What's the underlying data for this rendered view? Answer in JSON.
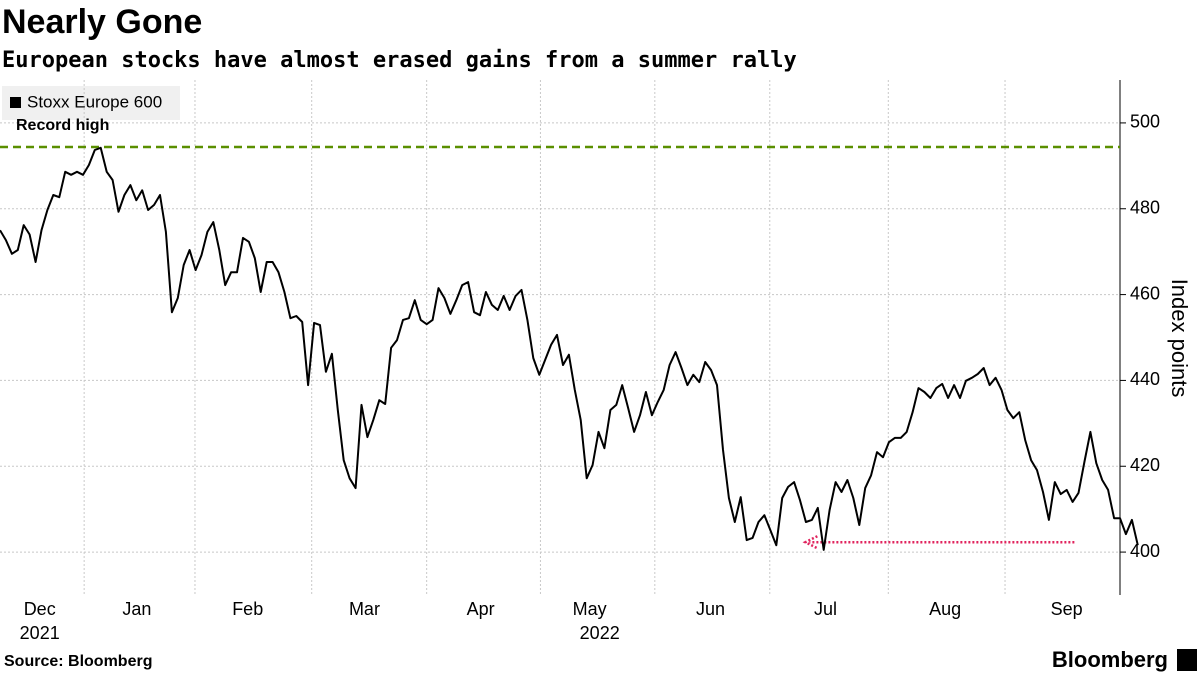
{
  "chart_data": {
    "type": "line",
    "title": "Nearly Gone",
    "subtitle": "European stocks have almost erased gains from a summer rally",
    "y_axis_label": "Index points",
    "source": "Source: Bloomberg",
    "brand": "Bloomberg",
    "series": [
      {
        "name": "Stoxx Europe 600",
        "color": "#000000",
        "values": [
          475,
          472.7,
          469.5,
          470.4,
          476.2,
          474,
          467.6,
          475,
          479.7,
          483.2,
          482.7,
          488.6,
          487.9,
          488.6,
          487.9,
          490.2,
          493.7,
          494.2,
          488.6,
          486.7,
          479.3,
          483.2,
          485.5,
          482,
          484.3,
          479.7,
          480.9,
          483.2,
          474.6,
          455.9,
          459.2,
          466.9,
          470.4,
          465.7,
          469.2,
          474.6,
          476.9,
          470.4,
          462.2,
          465.2,
          465.2,
          473.2,
          472.3,
          468.5,
          460.6,
          467.6,
          467.6,
          465.2,
          460.6,
          454.5,
          455,
          453.6,
          438.9,
          453.4,
          452.9,
          442,
          446.2,
          433.1,
          421.4,
          417.2,
          414.9,
          434.3,
          426.8,
          430.8,
          435.4,
          434.5,
          447.6,
          449.4,
          454.1,
          454.5,
          458.7,
          454.1,
          453.1,
          454.1,
          461.5,
          459.2,
          455.5,
          458.7,
          462.2,
          462.9,
          455.9,
          455.2,
          460.6,
          457.6,
          456.4,
          459.7,
          456.4,
          459.7,
          461.1,
          454.1,
          445.2,
          441.3,
          444.8,
          448.3,
          450.6,
          443.6,
          446,
          437.8,
          430.8,
          417.2,
          420.3,
          428,
          424.2,
          433.1,
          434.3,
          438.9,
          433.6,
          428,
          431.9,
          437.3,
          431.9,
          435,
          437.8,
          443.6,
          446.6,
          442.9,
          438.9,
          441.3,
          439.6,
          444.3,
          442.4,
          438.9,
          423.8,
          412.6,
          407,
          412.8,
          402.8,
          403.3,
          407,
          408.6,
          405.1,
          401.6,
          412.6,
          415.2,
          416.3,
          412.1,
          407,
          407.5,
          410.3,
          400.5,
          409.8,
          416.3,
          414,
          416.8,
          412.6,
          406.3,
          414.9,
          417.9,
          423.3,
          422.1,
          425.6,
          426.6,
          426.6,
          428,
          432.6,
          438.2,
          437.3,
          435.9,
          438.2,
          439.2,
          435.9,
          438.9,
          435.9,
          439.9,
          440.6,
          441.5,
          442.9,
          438.9,
          440.6,
          437.8,
          433.1,
          431.2,
          432.6,
          426.1,
          421.4,
          419.1,
          414,
          407.5,
          416.3,
          413.5,
          414.5,
          411.7,
          413.8,
          421,
          428,
          420.7,
          416.8,
          414.5,
          407.9,
          407.9,
          404.2,
          407.5,
          401.6
        ]
      }
    ],
    "xlim": [
      0,
      189
    ],
    "xticks": [
      {
        "value": 6.7,
        "label": "Dec"
      },
      {
        "value": 23.1,
        "label": "Jan"
      },
      {
        "value": 41.8,
        "label": "Feb"
      },
      {
        "value": 61.5,
        "label": "Mar"
      },
      {
        "value": 81.1,
        "label": "Apr"
      },
      {
        "value": 99.5,
        "label": "May"
      },
      {
        "value": 119.9,
        "label": "Jun"
      },
      {
        "value": 139.3,
        "label": "Jul"
      },
      {
        "value": 159.5,
        "label": "Aug"
      },
      {
        "value": 180,
        "label": "Sep"
      }
    ],
    "year_labels": [
      {
        "value": 6.7,
        "label": "2021"
      },
      {
        "value": 101.2,
        "label": "2022"
      }
    ],
    "xgrid": [
      14.2,
      32.9,
      52.6,
      72,
      91.2,
      110.5,
      129.9,
      149.9,
      169.6
    ],
    "ylim": [
      390,
      510
    ],
    "yticks": [
      400,
      420,
      440,
      460,
      480,
      500
    ],
    "grid": true,
    "reference_line": {
      "label": "Record high",
      "value": 494.4,
      "color": "#5a8f00"
    },
    "arrow": {
      "value": 402.3,
      "x_from": 181.3,
      "x_to": 135.9,
      "color": "#e0245e"
    }
  }
}
